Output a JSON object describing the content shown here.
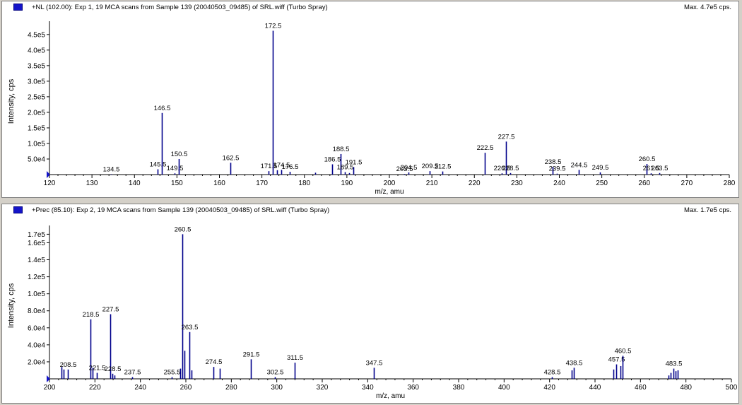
{
  "chart_data": [
    {
      "type": "bar",
      "title": "+NL (102.00): Exp 1, 19 MCA scans from Sample 139 (20040503_09485) of SRL.wiff (Turbo Spray)",
      "max_label": "Max. 4.7e5 cps.",
      "xlabel": "m/z, amu",
      "ylabel": "Intensity, cps",
      "xlim": [
        120,
        280
      ],
      "ylim": [
        0,
        470000
      ],
      "x_ticks": [
        "120",
        "130",
        "140",
        "150",
        "160",
        "170",
        "180",
        "190",
        "200",
        "210",
        "220",
        "230",
        "240",
        "250",
        "260",
        "270",
        "280"
      ],
      "y_ticks": [
        {
          "value": 50000,
          "label": "5.0e4"
        },
        {
          "value": 100000,
          "label": "1.0e5"
        },
        {
          "value": 150000,
          "label": "1.5e5"
        },
        {
          "value": 200000,
          "label": "2.0e5"
        },
        {
          "value": 250000,
          "label": "2.5e5"
        },
        {
          "value": 300000,
          "label": "3.0e5"
        },
        {
          "value": 350000,
          "label": "3.5e5"
        },
        {
          "value": 400000,
          "label": "4.0e5"
        },
        {
          "value": 450000,
          "label": "4.5e5"
        }
      ],
      "peaks": [
        {
          "x": 134.5,
          "y": 1500,
          "label": "134.5"
        },
        {
          "x": 145.5,
          "y": 17000,
          "label": "145.5"
        },
        {
          "x": 146.5,
          "y": 198000,
          "label": "146.5"
        },
        {
          "x": 149.5,
          "y": 4000,
          "label": "149.5"
        },
        {
          "x": 150.5,
          "y": 50000,
          "label": "150.5"
        },
        {
          "x": 162.5,
          "y": 38000,
          "label": "162.5"
        },
        {
          "x": 171.5,
          "y": 11000,
          "label": "171.5"
        },
        {
          "x": 172.5,
          "y": 462000,
          "label": "172.5"
        },
        {
          "x": 173.5,
          "y": 14000,
          "label": ""
        },
        {
          "x": 174.5,
          "y": 15000,
          "label": "174.5"
        },
        {
          "x": 176.5,
          "y": 9000,
          "label": "176.5"
        },
        {
          "x": 182.5,
          "y": 6000,
          "label": ""
        },
        {
          "x": 186.5,
          "y": 33000,
          "label": "186.5"
        },
        {
          "x": 188.5,
          "y": 66000,
          "label": "188.5"
        },
        {
          "x": 189.5,
          "y": 8000,
          "label": "189.5"
        },
        {
          "x": 190.5,
          "y": 5000,
          "label": ""
        },
        {
          "x": 191.5,
          "y": 24000,
          "label": "191.5"
        },
        {
          "x": 203.5,
          "y": 2000,
          "label": "203.5"
        },
        {
          "x": 204.5,
          "y": 7000,
          "label": "204.5"
        },
        {
          "x": 209.5,
          "y": 11000,
          "label": "209.5"
        },
        {
          "x": 212.5,
          "y": 10000,
          "label": "212.5"
        },
        {
          "x": 222.5,
          "y": 70000,
          "label": "222.5"
        },
        {
          "x": 226.5,
          "y": 4000,
          "label": "226.5"
        },
        {
          "x": 227.5,
          "y": 106000,
          "label": "227.5"
        },
        {
          "x": 228.5,
          "y": 5000,
          "label": "228.5"
        },
        {
          "x": 238.5,
          "y": 25000,
          "label": "238.5"
        },
        {
          "x": 239.5,
          "y": 3000,
          "label": "239.5"
        },
        {
          "x": 244.5,
          "y": 15000,
          "label": "244.5"
        },
        {
          "x": 249.5,
          "y": 7000,
          "label": "249.5"
        },
        {
          "x": 260.5,
          "y": 34000,
          "label": "260.5"
        },
        {
          "x": 261.5,
          "y": 4000,
          "label": "261.5"
        },
        {
          "x": 263.5,
          "y": 5000,
          "label": "263.5"
        }
      ]
    },
    {
      "type": "bar",
      "title": "+Prec (85.10): Exp 2, 19 MCA scans from Sample 139 (20040503_09485) of SRL.wiff (Turbo Spray)",
      "max_label": "Max. 1.7e5 cps.",
      "xlabel": "m/z, amu",
      "ylabel": "Intensity, cps",
      "xlim": [
        200,
        510
      ],
      "ylim": [
        0,
        172000
      ],
      "x_ticks": [
        "200",
        "220",
        "240",
        "260",
        "280",
        "300",
        "320",
        "340",
        "360",
        "380",
        "400",
        "420",
        "440",
        "460",
        "480",
        "500"
      ],
      "y_ticks": [
        {
          "value": 20000,
          "label": "2.0e4"
        },
        {
          "value": 40000,
          "label": "4.0e4"
        },
        {
          "value": 60000,
          "label": "6.0e4"
        },
        {
          "value": 80000,
          "label": "8.0e4"
        },
        {
          "value": 100000,
          "label": "1.0e5"
        },
        {
          "value": 120000,
          "label": "1.2e5"
        },
        {
          "value": 140000,
          "label": "1.4e5"
        },
        {
          "value": 160000,
          "label": "1.6e5"
        },
        {
          "value": 170000,
          "label": "1.7e5"
        }
      ],
      "peaks": [
        {
          "x": 205.5,
          "y": 14000,
          "label": ""
        },
        {
          "x": 206.5,
          "y": 11000,
          "label": ""
        },
        {
          "x": 208.5,
          "y": 11000,
          "label": "208.5"
        },
        {
          "x": 218.5,
          "y": 70000,
          "label": "218.5"
        },
        {
          "x": 219.5,
          "y": 13000,
          "label": ""
        },
        {
          "x": 221.5,
          "y": 7000,
          "label": "221.5"
        },
        {
          "x": 227.5,
          "y": 76000,
          "label": "227.5"
        },
        {
          "x": 228.5,
          "y": 6000,
          "label": "228.5"
        },
        {
          "x": 229.5,
          "y": 4000,
          "label": ""
        },
        {
          "x": 237.5,
          "y": 2000,
          "label": "237.5"
        },
        {
          "x": 255.5,
          "y": 2000,
          "label": "255.5"
        },
        {
          "x": 259.5,
          "y": 12000,
          "label": ""
        },
        {
          "x": 260.5,
          "y": 170000,
          "label": "260.5"
        },
        {
          "x": 261.5,
          "y": 33000,
          "label": ""
        },
        {
          "x": 263.5,
          "y": 55000,
          "label": "263.5"
        },
        {
          "x": 264.5,
          "y": 10000,
          "label": ""
        },
        {
          "x": 274.5,
          "y": 14000,
          "label": "274.5"
        },
        {
          "x": 277.5,
          "y": 12000,
          "label": ""
        },
        {
          "x": 291.5,
          "y": 23000,
          "label": "291.5"
        },
        {
          "x": 302.5,
          "y": 2000,
          "label": "302.5"
        },
        {
          "x": 311.5,
          "y": 19000,
          "label": "311.5"
        },
        {
          "x": 347.5,
          "y": 13000,
          "label": "347.5"
        },
        {
          "x": 428.5,
          "y": 2000,
          "label": "428.5"
        },
        {
          "x": 437.5,
          "y": 10000,
          "label": ""
        },
        {
          "x": 438.5,
          "y": 13000,
          "label": "438.5"
        },
        {
          "x": 456.5,
          "y": 11000,
          "label": ""
        },
        {
          "x": 457.5,
          "y": 17000,
          "label": "457.5"
        },
        {
          "x": 459.5,
          "y": 15000,
          "label": ""
        },
        {
          "x": 460.5,
          "y": 27000,
          "label": "460.5"
        },
        {
          "x": 481.5,
          "y": 4000,
          "label": ""
        },
        {
          "x": 482.5,
          "y": 7000,
          "label": ""
        },
        {
          "x": 483.5,
          "y": 12000,
          "label": "483.5"
        },
        {
          "x": 484.5,
          "y": 9000,
          "label": ""
        },
        {
          "x": 485.5,
          "y": 10000,
          "label": ""
        }
      ]
    }
  ],
  "colors": {
    "peak": "#00008b",
    "axis": "#000000",
    "marker": "#1414c8"
  }
}
